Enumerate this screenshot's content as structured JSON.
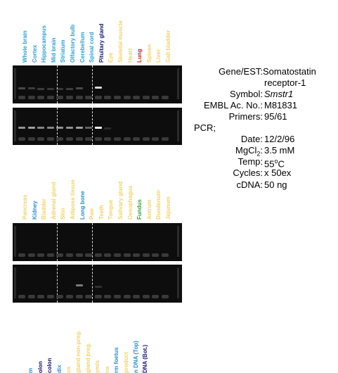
{
  "panel_top": {
    "lanes": [
      {
        "label": "Whole brain",
        "color": "#2fa2d6"
      },
      {
        "label": "Cortex",
        "color": "#2fa2d6"
      },
      {
        "label": "Hippocampus",
        "color": "#2fa2d6"
      },
      {
        "label": "Mid brain",
        "color": "#2fa2d6"
      },
      {
        "label": "Striatum",
        "color": "#2fa2d6"
      },
      {
        "label": "Olfactory bulb",
        "color": "#2fa2d6"
      },
      {
        "label": "Cerebellum",
        "color": "#2fa2d6"
      },
      {
        "label": "Spinal cord",
        "color": "#2fa2d6"
      },
      {
        "label": "Pituitary gland",
        "color": "#1a1a7a"
      },
      {
        "label": "Eye",
        "color": "#f2d36b"
      },
      {
        "label": "Skeletal muscle",
        "color": "#f2d36b"
      },
      {
        "label": "Heart",
        "color": "#f2d36b"
      },
      {
        "label": "Lung",
        "color": "#d42020"
      },
      {
        "label": "Spleen",
        "color": "#f2d36b"
      },
      {
        "label": "Liver",
        "color": "#f2d36b"
      },
      {
        "label": "Gall bladder",
        "color": "#f2d36b"
      }
    ]
  },
  "panel_bottom": {
    "lanes": [
      {
        "label": "Pancreas",
        "color": "#f2d36b"
      },
      {
        "label": "Kidney",
        "color": "#2f8fd0"
      },
      {
        "label": "Bladder",
        "color": "#f2d36b"
      },
      {
        "label": "Adrenal gland",
        "color": "#f2d36b"
      },
      {
        "label": "Skin",
        "color": "#f2d36b"
      },
      {
        "label": "Adipose tissue",
        "color": "#f2d36b"
      },
      {
        "label": "Long bone",
        "color": "#2f8fd0"
      },
      {
        "label": "Paw",
        "color": "#f2d36b"
      },
      {
        "label": "Teeth",
        "color": "#f2d36b"
      },
      {
        "label": "Tongue",
        "color": "#f2d36b"
      },
      {
        "label": "Salivary gland",
        "color": "#f2d36b"
      },
      {
        "label": "Oesophagus",
        "color": "#f2d36b"
      },
      {
        "label": "Fundus",
        "color": "#3aa53a"
      },
      {
        "label": "Antrum",
        "color": "#f2d36b"
      },
      {
        "label": "Duodenum",
        "color": "#f2d36b"
      },
      {
        "label": "Jejunum",
        "color": "#f2d36b"
      }
    ]
  },
  "panel_bottom_cut": {
    "lanes": [
      {
        "label": "m",
        "color": "#2f8fd0"
      },
      {
        "label": "olon",
        "color": "#1a1a7a"
      },
      {
        "label": "colon",
        "color": "#1a1a7a"
      },
      {
        "label": "dix",
        "color": "#2f8fd0"
      },
      {
        "label": "us",
        "color": "#f2d36b"
      },
      {
        "label": "gland non-preg.",
        "color": "#f2d36b"
      },
      {
        "label": "gland preg.",
        "color": "#f2d36b"
      },
      {
        "label": "ymis",
        "color": "#f2d36b"
      },
      {
        "label": "na",
        "color": "#f2d36b"
      },
      {
        "label": "rm foetus",
        "color": "#2f8fd0"
      },
      {
        "label": "product",
        "color": "#f2d36b"
      },
      {
        "label": "n DNA (Top)",
        "color": "#2f8fd0"
      },
      {
        "label": "DNA (Bot.)",
        "color": "#1a1a7a"
      }
    ]
  },
  "info": {
    "gene_key": "Gene/EST:",
    "gene_val_1": "Somatostatin",
    "gene_val_2": "receptor-1",
    "symbol_key": "Symbol:",
    "symbol_val": "Smstr1",
    "embl_key": "EMBL Ac. No.:",
    "embl_val": "M81831",
    "primers_key": "Primers:",
    "primers_val": "95/61",
    "pcr_heading": "PCR;",
    "date_key": "Date:",
    "date_val": "12/2/96",
    "mgcl_key_a": "MgCl",
    "mgcl_key_sub": "2",
    "mgcl_key_b": ":",
    "mgcl_val": "3.5 mM",
    "temp_key": "Temp:",
    "temp_val_a": "55",
    "temp_val_sup": "o",
    "temp_val_b": "C",
    "cycles_key": "Cycles:",
    "cycles_val": "x 50ex",
    "cdna_key": "cDNA:",
    "cdna_val": "50 ng"
  }
}
